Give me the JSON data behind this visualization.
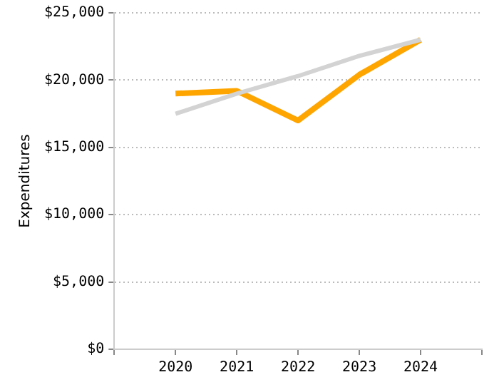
{
  "chart_data": {
    "type": "line",
    "ylabel": "Expenditures",
    "x": [
      2020,
      2021,
      2022,
      2023,
      2024
    ],
    "series": [
      {
        "color": "#d3d3d3",
        "values": [
          17500,
          19000,
          20300,
          21800,
          23000
        ]
      },
      {
        "color": "#ffa500",
        "values": [
          19000,
          19200,
          17000,
          20400,
          23000
        ]
      }
    ],
    "xlim": [
      2019,
      2025
    ],
    "xticks": [
      {
        "value": 2019,
        "label": null
      },
      2020,
      2021,
      2022,
      2023,
      2024,
      {
        "value": 2025,
        "label": null
      }
    ],
    "ylim": [
      0,
      25000
    ],
    "yticks": [
      {
        "value": 0,
        "label": "$0"
      },
      {
        "value": 5000,
        "label": "$5,000"
      },
      {
        "value": 10000,
        "label": "$10,000"
      },
      {
        "value": 15000,
        "label": "$15,000"
      },
      {
        "value": 20000,
        "label": "$20,000"
      },
      {
        "value": 25000,
        "label": "$25,000"
      }
    ],
    "grid": "y",
    "legend": false,
    "marker": "none",
    "line_style": "solid"
  }
}
